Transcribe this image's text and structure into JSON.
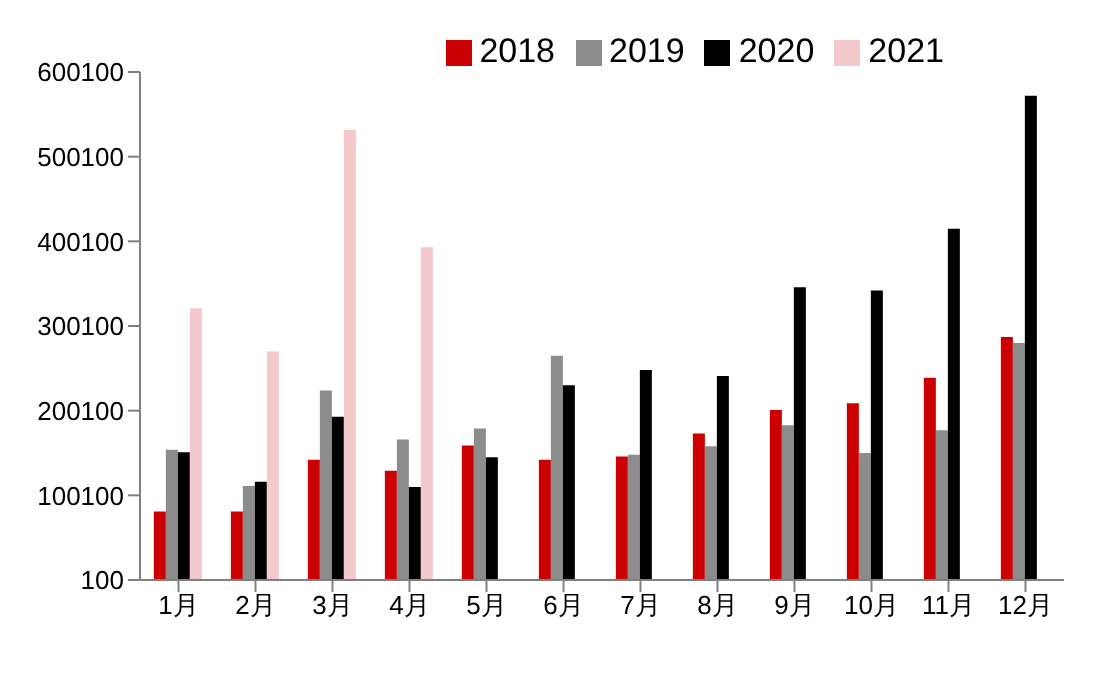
{
  "chart_data": {
    "type": "bar",
    "categories": [
      "1月",
      "2月",
      "3月",
      "4月",
      "5月",
      "6月",
      "7月",
      "8月",
      "9月",
      "10月",
      "11月",
      "12月"
    ],
    "series": [
      {
        "name": "2018",
        "color": "#cc0000",
        "values": [
          81000,
          81000,
          142000,
          129000,
          159000,
          142000,
          146000,
          173000,
          201000,
          209000,
          239000,
          287000
        ]
      },
      {
        "name": "2019",
        "color": "#8c8c8c",
        "values": [
          154000,
          111000,
          224000,
          166000,
          179000,
          265000,
          148000,
          158000,
          183000,
          150000,
          177000,
          280000
        ]
      },
      {
        "name": "2020",
        "color": "#000000",
        "values": [
          151000,
          116000,
          193000,
          110000,
          145000,
          230000,
          248000,
          241000,
          346000,
          342000,
          415000,
          572000
        ]
      },
      {
        "name": "2021",
        "color": "#f4c9cb",
        "values": [
          321000,
          270000,
          532000,
          393000,
          null,
          null,
          null,
          null,
          null,
          null,
          null,
          null
        ]
      }
    ],
    "ylim": [
      100,
      600100
    ],
    "yticks": [
      100,
      100100,
      200100,
      300100,
      400100,
      500100,
      600100
    ],
    "grid": false,
    "legend": "top right"
  }
}
